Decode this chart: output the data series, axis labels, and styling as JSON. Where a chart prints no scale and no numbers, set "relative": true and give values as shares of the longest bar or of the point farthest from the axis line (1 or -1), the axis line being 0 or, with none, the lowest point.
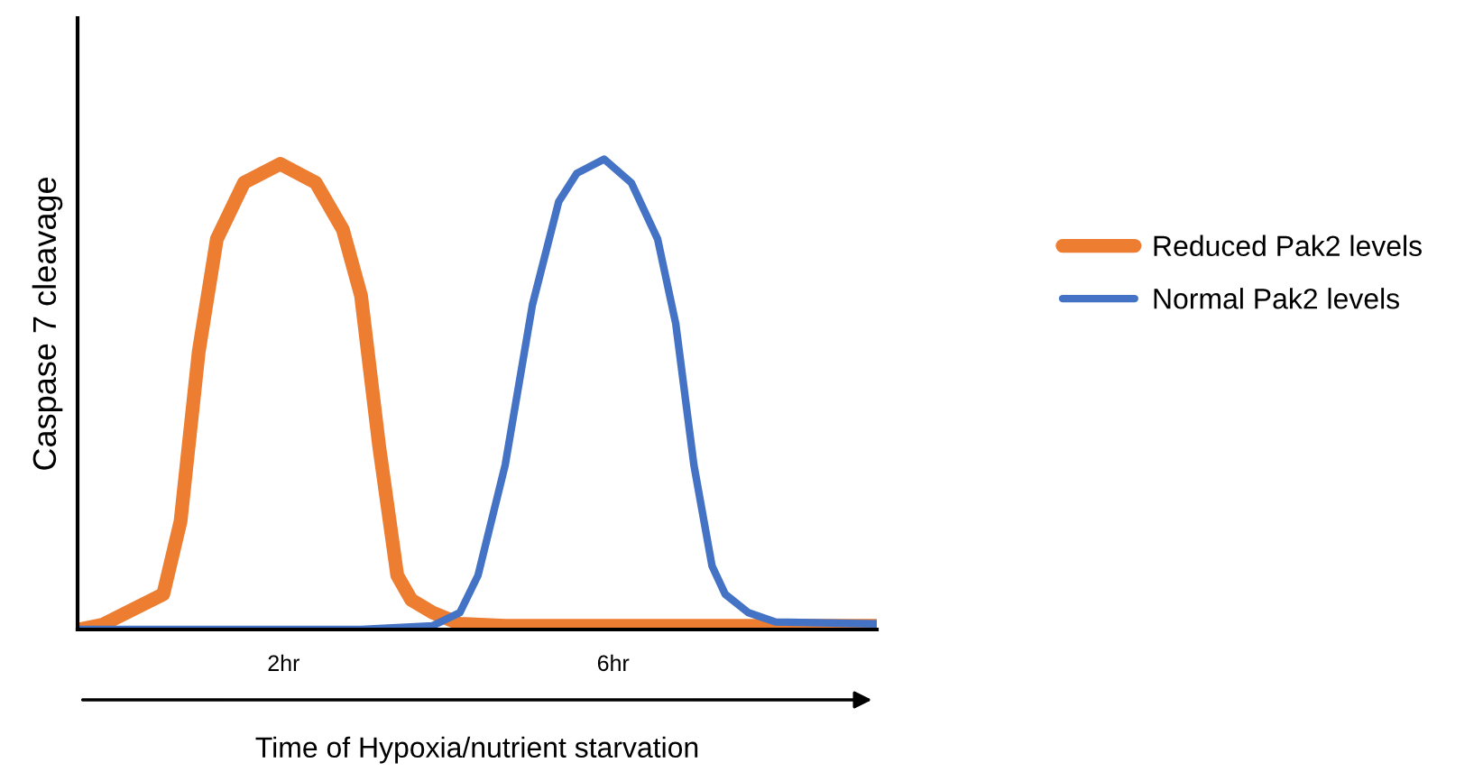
{
  "chart_data": {
    "type": "line",
    "relative": true,
    "xlabel": "Time of Hypoxia/nutrient starvation",
    "ylabel": "Caspase 7 cleavage",
    "xlim": [
      -0.5,
      9.2
    ],
    "xticks": [
      {
        "value": 2,
        "label": "2hr"
      },
      {
        "value": 6,
        "label": "6hr"
      }
    ],
    "legend": "right",
    "grid": false,
    "marker": "none",
    "line_style": "solid",
    "series": [
      {
        "name": "Reduced Pak2 levels",
        "color": "#ed7d31",
        "x": [
          -0.49,
          -0.2,
          0.54,
          0.75,
          0.97,
          1.19,
          1.52,
          1.96,
          2.39,
          2.72,
          2.94,
          3.16,
          3.38,
          3.55,
          3.81,
          4.14,
          4.69,
          9.19
        ],
        "values": [
          0,
          0.01,
          0.075,
          0.23,
          0.59,
          0.83,
          0.95,
          0.99,
          0.95,
          0.85,
          0.71,
          0.39,
          0.115,
          0.063,
          0.036,
          0.012,
          0.008,
          0.008
        ]
      },
      {
        "name": "Normal Pak2 levels",
        "color": "#4472c4",
        "x": [
          -0.49,
          2.94,
          3.81,
          4.14,
          4.36,
          4.69,
          5.02,
          5.34,
          5.56,
          5.89,
          6.22,
          6.54,
          6.76,
          6.98,
          7.2,
          7.36,
          7.64,
          7.97,
          9.19
        ],
        "values": [
          0,
          0,
          0.008,
          0.036,
          0.115,
          0.35,
          0.69,
          0.91,
          0.97,
          1,
          0.95,
          0.83,
          0.65,
          0.35,
          0.135,
          0.075,
          0.036,
          0.016,
          0.012
        ]
      }
    ]
  }
}
